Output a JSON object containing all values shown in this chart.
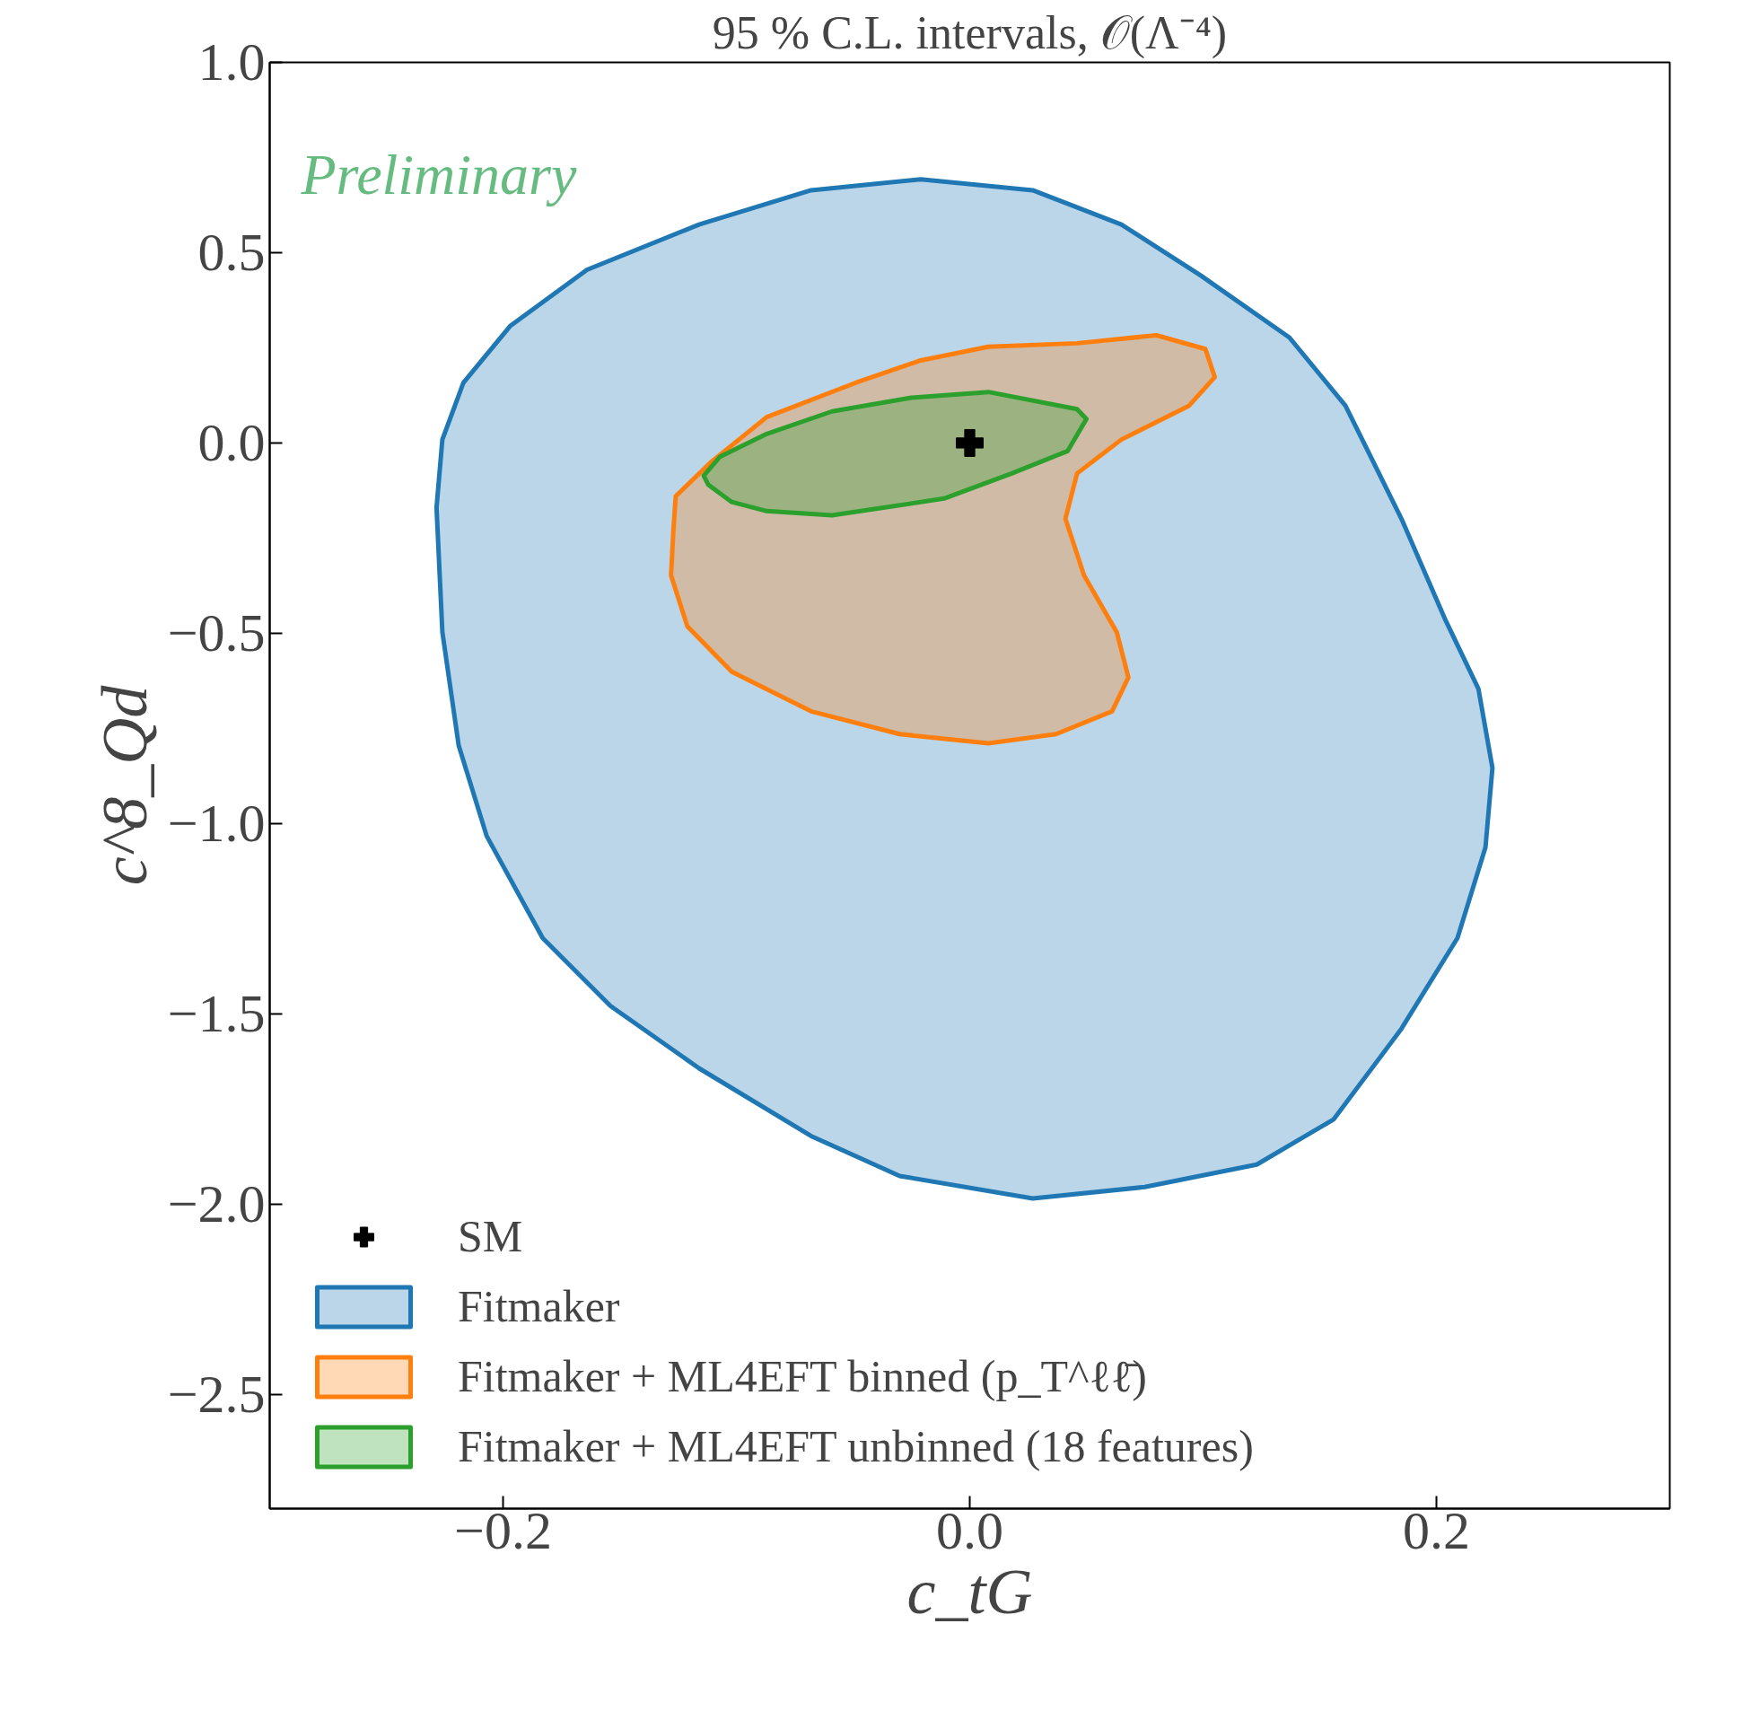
{
  "chart_data": {
    "type": "area",
    "title": "95 % C.L. intervals, 𝒪(Λ⁻⁴)",
    "xlabel": "c_tG",
    "ylabel": "c^8_Qd",
    "annotations": [
      "Preliminary"
    ],
    "xlim": [
      -0.3,
      0.3
    ],
    "ylim": [
      -2.8,
      1.0
    ],
    "xticks": [
      {
        "value": -0.2,
        "label": "−0.2"
      },
      {
        "value": 0,
        "label": "0.0"
      },
      {
        "value": 0.2,
        "label": "0.2"
      }
    ],
    "yticks": [
      {
        "value": 1.0,
        "label": "1.0"
      },
      {
        "value": 0.5,
        "label": "0.5"
      },
      {
        "value": 0,
        "label": "0.0"
      },
      {
        "value": -0.5,
        "label": "−0.5"
      },
      {
        "value": -1.0,
        "label": "−1.0"
      },
      {
        "value": -1.5,
        "label": "−1.5"
      },
      {
        "value": -2.0,
        "label": "−2.0"
      },
      {
        "value": -2.5,
        "label": "−2.5"
      }
    ],
    "grid": false,
    "legend": "bottom left",
    "series": [
      {
        "type": "scatter",
        "name": "SM",
        "color": "#000000",
        "marker": "cross",
        "x": [
          0
        ],
        "values": [
          0
        ]
      },
      {
        "name": "Fitmaker",
        "color": "#1f77b4",
        "x": [
          -0.2285,
          -0.226,
          -0.219,
          -0.207,
          -0.183,
          -0.154,
          -0.116,
          -0.068,
          -0.03,
          0.027,
          0.075,
          0.123,
          0.156,
          0.185,
          0.209,
          0.221,
          0.224,
          0.218,
          0.204,
          0.185,
          0.161,
          0.137,
          0.099,
          0.065,
          0.027,
          -0.021,
          -0.068,
          -0.116,
          -0.164,
          -0.197,
          -0.217,
          -0.226
        ],
        "values": [
          -0.17,
          -0.497,
          -0.795,
          -1.033,
          -1.301,
          -1.479,
          -1.643,
          -1.821,
          -1.926,
          -1.985,
          -1.955,
          -1.896,
          -1.777,
          -1.539,
          -1.301,
          -1.063,
          -0.854,
          -0.646,
          -0.467,
          -0.199,
          0.098,
          0.277,
          0.44,
          0.574,
          0.664,
          0.693,
          0.664,
          0.574,
          0.455,
          0.307,
          0.158,
          0.009
        ]
      },
      {
        "name": "Fitmaker + ML4EFT binned (p_T^ℓℓ̄)",
        "color": "#ff7f0e",
        "x": [
          -0.126,
          -0.111,
          -0.087,
          -0.049,
          -0.021,
          0.008,
          0.046,
          0.08,
          0.101,
          0.105,
          0.094,
          0.065,
          0.046,
          0.041,
          0.049,
          0.063,
          0.068,
          0.061,
          0.037,
          0.008,
          -0.03,
          -0.068,
          -0.102,
          -0.121,
          -0.128,
          -0.127
        ],
        "values": [
          -0.14,
          -0.051,
          0.068,
          0.158,
          0.217,
          0.253,
          0.262,
          0.283,
          0.247,
          0.173,
          0.098,
          0.009,
          -0.08,
          -0.199,
          -0.348,
          -0.497,
          -0.616,
          -0.705,
          -0.765,
          -0.789,
          -0.765,
          -0.705,
          -0.601,
          -0.482,
          -0.348,
          -0.229
        ]
      },
      {
        "name": "Fitmaker + ML4EFT unbinned (18 features)",
        "color": "#2ca02c",
        "x": [
          -0.114,
          -0.107,
          -0.087,
          -0.059,
          -0.025,
          0.008,
          0.046,
          0.05,
          0.042,
          0.018,
          -0.011,
          -0.059,
          -0.087,
          -0.102,
          -0.112
        ],
        "values": [
          -0.086,
          -0.036,
          0.024,
          0.083,
          0.119,
          0.134,
          0.089,
          0.063,
          -0.021,
          -0.08,
          -0.146,
          -0.19,
          -0.179,
          -0.155,
          -0.11
        ]
      }
    ]
  }
}
